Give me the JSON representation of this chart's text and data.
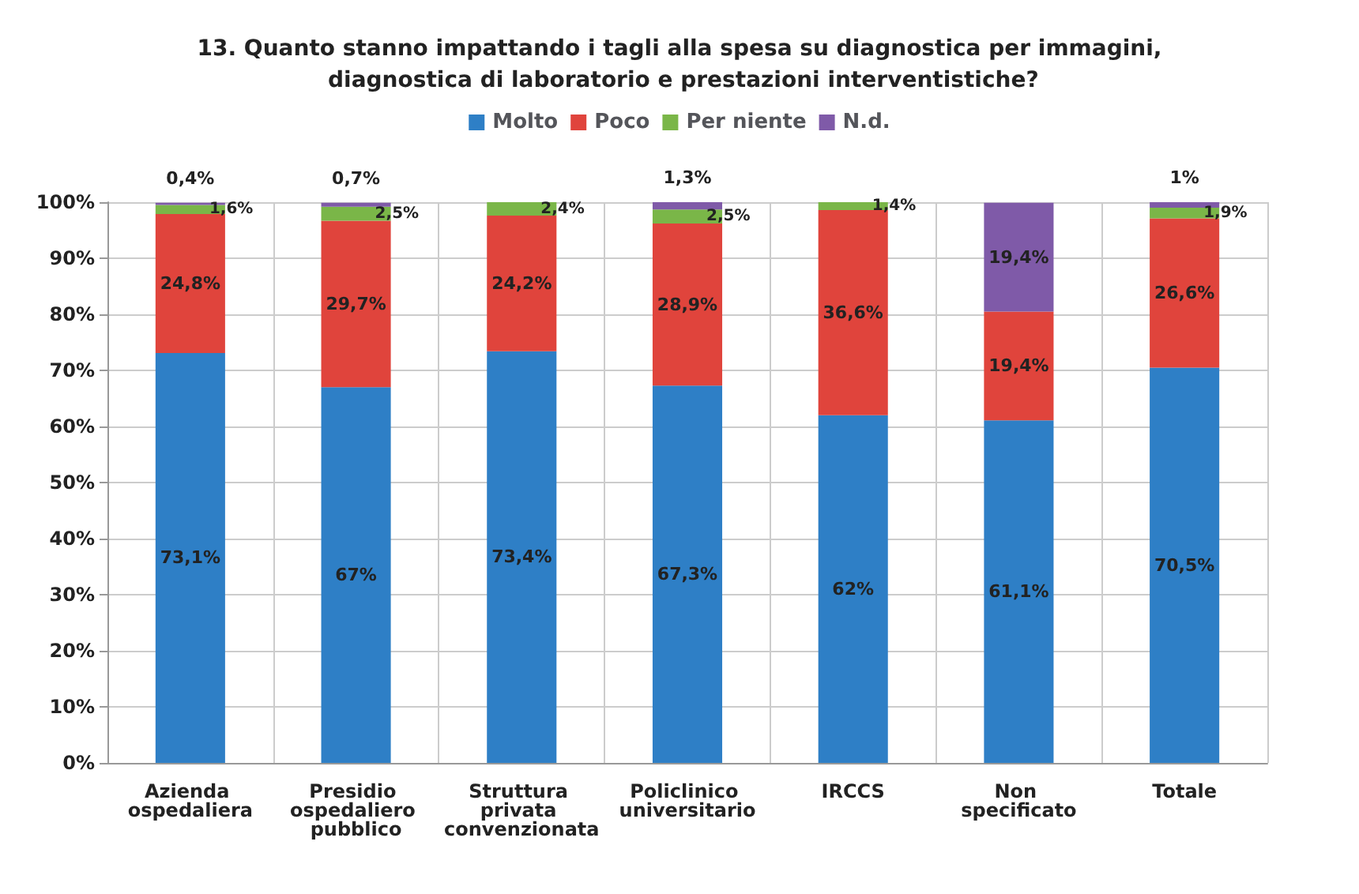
{
  "chart_data": {
    "type": "bar",
    "stacked": true,
    "title": "13. Quanto stanno impattando i tagli alla spesa su diagnostica per immagini, diagnostica di laboratorio e prestazioni interventistiche?",
    "categories": [
      "Azienda ospedaliera",
      "Presidio ospedaliero pubblico",
      "Struttura privata convenzionata",
      "Policlinico universitario",
      "IRCCS",
      "Non specificato",
      "Totale"
    ],
    "series": [
      {
        "name": "Molto",
        "color": "#2e7fc6",
        "values": [
          73.1,
          67,
          73.4,
          67.3,
          62,
          61.1,
          70.5
        ],
        "value_labels": [
          "73,1%",
          "67%",
          "73,4%",
          "67,3%",
          "62%",
          "61,1%",
          "70,5%"
        ]
      },
      {
        "name": "Poco",
        "color": "#e0443c",
        "values": [
          24.8,
          29.7,
          24.2,
          28.9,
          36.6,
          19.4,
          26.6
        ],
        "value_labels": [
          "24,8%",
          "29,7%",
          "24,2%",
          "28,9%",
          "36,6%",
          "19,4%",
          "26,6%"
        ]
      },
      {
        "name": "Per niente",
        "color": "#7ab648",
        "values": [
          1.6,
          2.5,
          2.4,
          2.5,
          1.4,
          null,
          1.9
        ],
        "value_labels": [
          "1,6%",
          "2,5%",
          "2,4%",
          "2,5%",
          "1,4%",
          null,
          "1,9%"
        ]
      },
      {
        "name": "N.d.",
        "color": "#7f5aa8",
        "values": [
          0.4,
          0.7,
          null,
          1.3,
          null,
          19.4,
          1
        ],
        "value_labels": [
          "0,4%",
          "0,7%",
          null,
          "1,3%",
          null,
          "19,4%",
          "1%"
        ]
      }
    ],
    "ylim": [
      0,
      100
    ],
    "yticks": [
      {
        "value": 0,
        "label": "0%"
      },
      {
        "value": 10,
        "label": "10%"
      },
      {
        "value": 20,
        "label": "20%"
      },
      {
        "value": 30,
        "label": "30%"
      },
      {
        "value": 40,
        "label": "40%"
      },
      {
        "value": 50,
        "label": "50%"
      },
      {
        "value": 60,
        "label": "60%"
      },
      {
        "value": 70,
        "label": "70%"
      },
      {
        "value": 80,
        "label": "80%"
      },
      {
        "value": 90,
        "label": "90%"
      },
      {
        "value": 100,
        "label": "100%"
      }
    ],
    "grid": true,
    "legend": "top"
  }
}
